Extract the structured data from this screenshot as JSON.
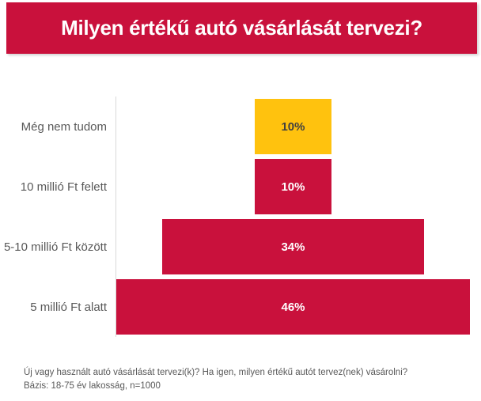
{
  "header": {
    "title": "Milyen értékű autó vásárlását tervezi?"
  },
  "chart_data": {
    "type": "bar",
    "subtype": "centered-funnel",
    "orientation": "horizontal",
    "title": "Milyen értékű autó vásárlását tervezi?",
    "categories": [
      "Még nem tudom",
      "10 millió Ft felett",
      "5-10 millió Ft között",
      "5 millió Ft alatt"
    ],
    "values": [
      10,
      10,
      34,
      46
    ],
    "value_labels": [
      "10%",
      "10%",
      "34%",
      "46%"
    ],
    "bar_colors": [
      "#FFC20E",
      "#C9113C",
      "#C9113C",
      "#C9113C"
    ],
    "value_label_colors": [
      "#404040",
      "#FFFFFF",
      "#FFFFFF",
      "#FFFFFF"
    ],
    "xlim": [
      0,
      46
    ],
    "xlabel": "",
    "ylabel": "",
    "grid": false,
    "legend": false,
    "axis_line_color": "#D9D9D9",
    "category_label_color": "#595959"
  },
  "footer": {
    "question": "Új vagy használt autó vásárlását tervezi(k)? Ha igen, milyen értékű autót tervez(nek) vásárolni?",
    "base": "Bázis: 18-75 év lakosság, n=1000"
  },
  "colors": {
    "accent_red": "#C9113C",
    "accent_yellow": "#FFC20E",
    "banner_text": "#FFFFFF",
    "text_gray": "#595959"
  }
}
